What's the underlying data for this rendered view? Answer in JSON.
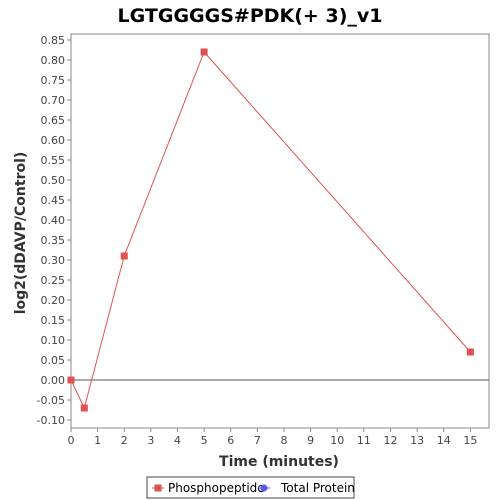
{
  "chart_data": {
    "type": "line",
    "title": "LGTGGGGS#PDK(+ 3)_v1",
    "xlabel": "Time (minutes)",
    "ylabel": "log2(dDAVP/Control)",
    "xlim": [
      0,
      15.7
    ],
    "ylim": [
      -0.12,
      0.865
    ],
    "x_ticks": [
      0,
      1,
      2,
      3,
      4,
      5,
      6,
      7,
      8,
      9,
      10,
      11,
      12,
      13,
      14,
      15
    ],
    "y_ticks": [
      -0.1,
      -0.05,
      0.0,
      0.05,
      0.1,
      0.15,
      0.2,
      0.25,
      0.3,
      0.35,
      0.4,
      0.45,
      0.5,
      0.55,
      0.6,
      0.65,
      0.7,
      0.75,
      0.8,
      0.85
    ],
    "grid": false,
    "legend_position": "bottom",
    "series": [
      {
        "name": "Phosphopeptide",
        "color": "#e05252",
        "marker": "square",
        "points": [
          {
            "x": 0,
            "y": 0.0
          },
          {
            "x": 0.5,
            "y": -0.07
          },
          {
            "x": 2,
            "y": 0.31
          },
          {
            "x": 5,
            "y": 0.82
          },
          {
            "x": 15,
            "y": 0.07
          }
        ]
      },
      {
        "name": "Total Protein",
        "color": "#5a5ae6",
        "marker": "circle",
        "points": []
      }
    ]
  }
}
